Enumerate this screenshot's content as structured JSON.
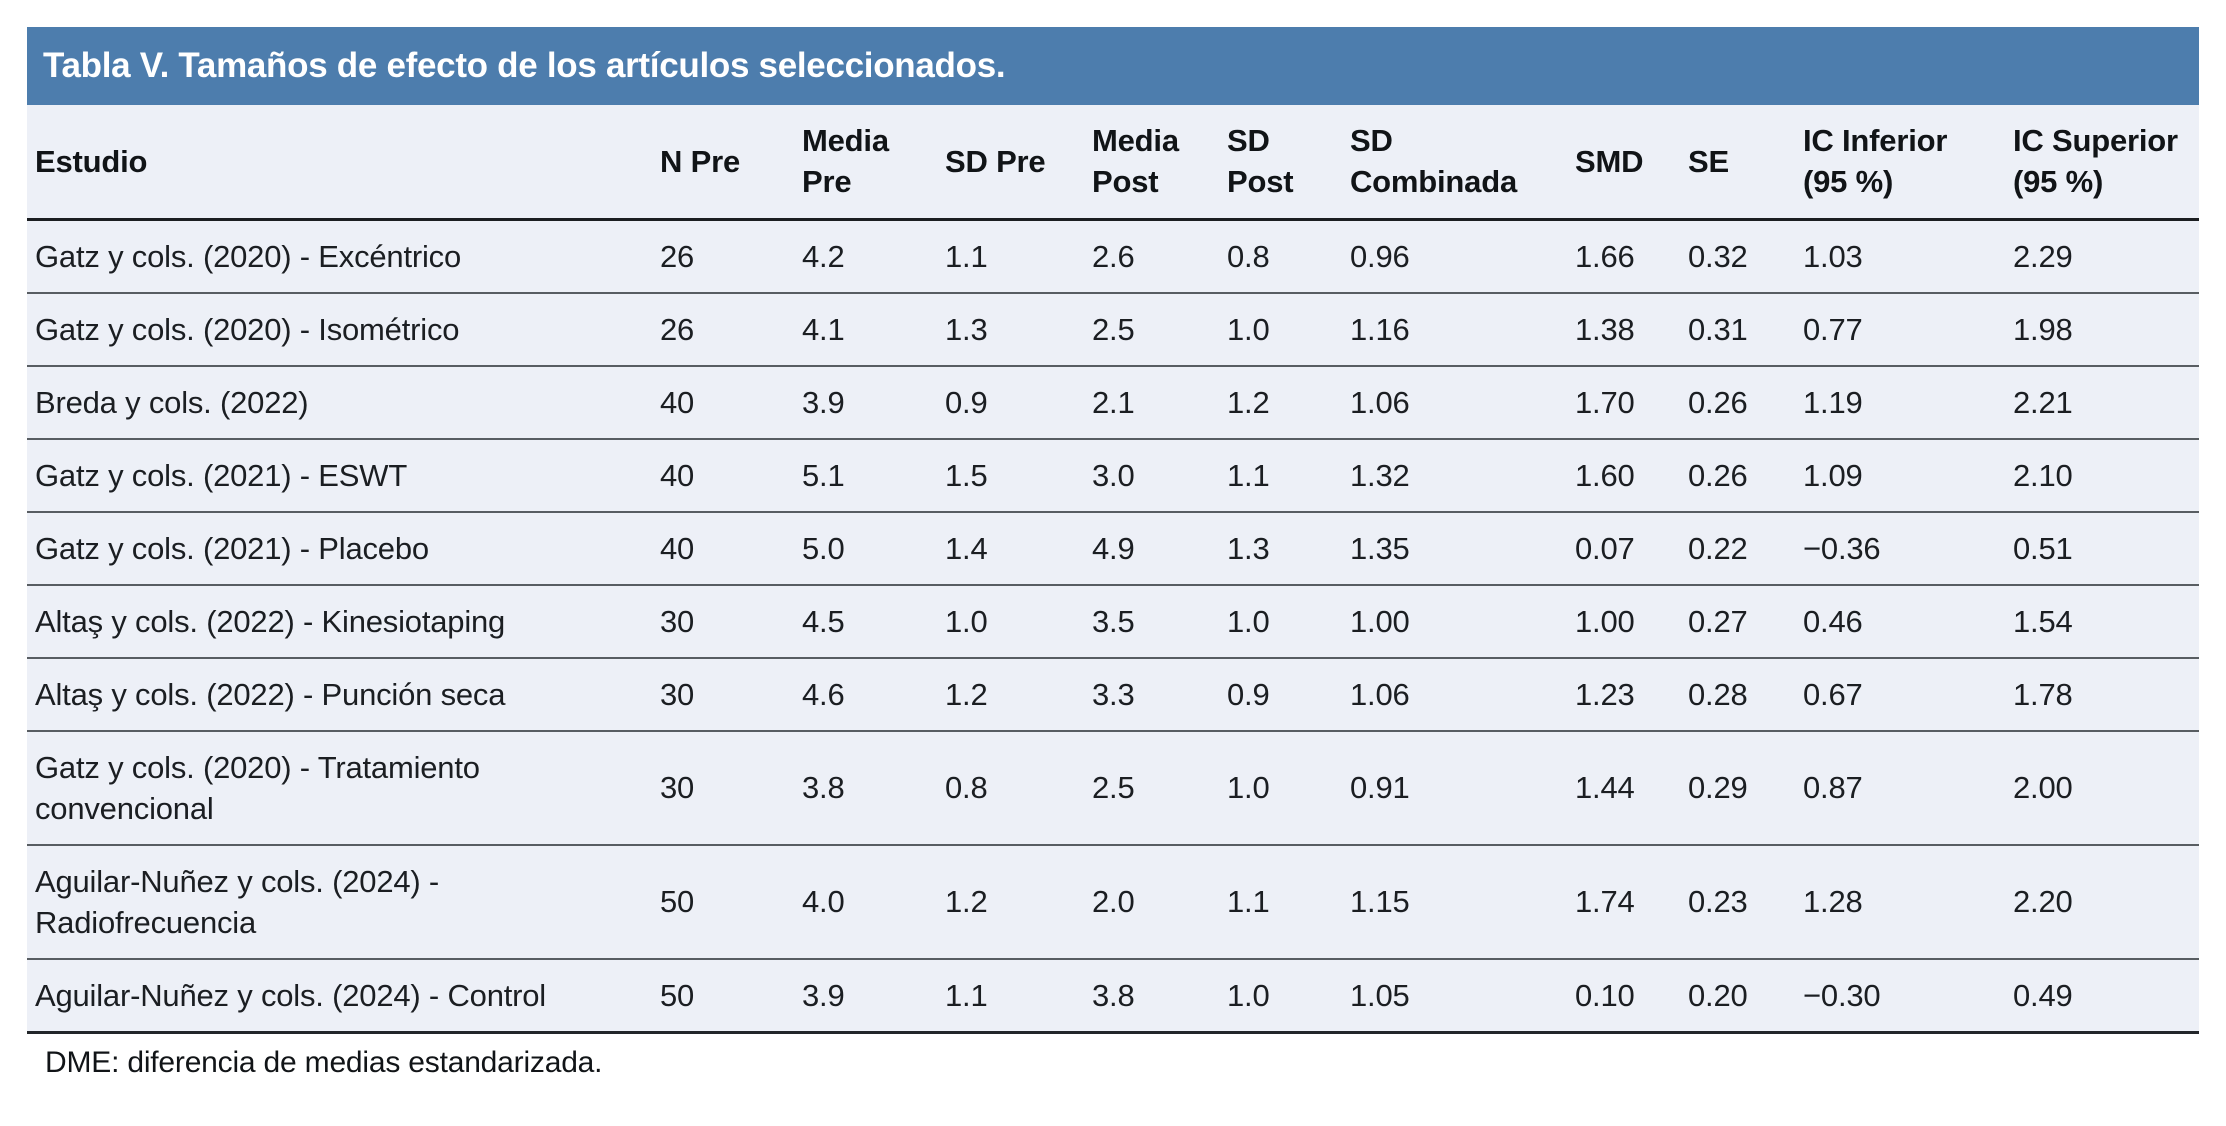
{
  "table": {
    "title": "Tabla V. Tamaños de efecto de los artículos seleccionados.",
    "columns": [
      {
        "key": "estudio",
        "label": "Estudio"
      },
      {
        "key": "n-pre",
        "label": "N Pre"
      },
      {
        "key": "media-pre",
        "label": "Media\nPre"
      },
      {
        "key": "sd-pre",
        "label": "SD Pre"
      },
      {
        "key": "media-post",
        "label": "Media\nPost"
      },
      {
        "key": "sd-post",
        "label": "SD\nPost"
      },
      {
        "key": "sd-combinada",
        "label": "SD\nCombinada"
      },
      {
        "key": "smd",
        "label": "SMD"
      },
      {
        "key": "se",
        "label": "SE"
      },
      {
        "key": "ic-inferior",
        "label": "IC Inferior\n(95 %)"
      },
      {
        "key": "ic-superior",
        "label": "IC Superior\n(95 %)"
      }
    ],
    "rows": [
      [
        "Gatz y cols. (2020) - Excéntrico",
        "26",
        "4.2",
        "1.1",
        "2.6",
        "0.8",
        "0.96",
        "1.66",
        "0.32",
        "1.03",
        "2.29"
      ],
      [
        "Gatz y cols. (2020) - Isométrico",
        "26",
        "4.1",
        "1.3",
        "2.5",
        "1.0",
        "1.16",
        "1.38",
        "0.31",
        "0.77",
        "1.98"
      ],
      [
        "Breda y cols. (2022)",
        "40",
        "3.9",
        "0.9",
        "2.1",
        "1.2",
        "1.06",
        "1.70",
        "0.26",
        "1.19",
        "2.21"
      ],
      [
        "Gatz y cols. (2021) - ESWT",
        "40",
        "5.1",
        "1.5",
        "3.0",
        "1.1",
        "1.32",
        "1.60",
        "0.26",
        "1.09",
        "2.10"
      ],
      [
        "Gatz y cols. (2021) - Placebo",
        "40",
        "5.0",
        "1.4",
        "4.9",
        "1.3",
        "1.35",
        "0.07",
        "0.22",
        "−0.36",
        "0.51"
      ],
      [
        "Altaş y cols. (2022) - Kinesiotaping",
        "30",
        "4.5",
        "1.0",
        "3.5",
        "1.0",
        "1.00",
        "1.00",
        "0.27",
        "0.46",
        "1.54"
      ],
      [
        "Altaş y cols. (2022) - Punción seca",
        "30",
        "4.6",
        "1.2",
        "3.3",
        "0.9",
        "1.06",
        "1.23",
        "0.28",
        "0.67",
        "1.78"
      ],
      [
        "Gatz y cols. (2020) - Tratamiento convencional",
        "30",
        "3.8",
        "0.8",
        "2.5",
        "1.0",
        "0.91",
        "1.44",
        "0.29",
        "0.87",
        "2.00"
      ],
      [
        "Aguilar-Nuñez y cols. (2024) - Radiofrecuencia",
        "50",
        "4.0",
        "1.2",
        "2.0",
        "1.1",
        "1.15",
        "1.74",
        "0.23",
        "1.28",
        "2.20"
      ],
      [
        "Aguilar-Nuñez y cols. (2024) - Control",
        "50",
        "3.9",
        "1.1",
        "3.8",
        "1.0",
        "1.05",
        "0.10",
        "0.20",
        "−0.30",
        "0.49"
      ]
    ],
    "footnote": "DME: diferencia de medias estandarizada.",
    "colors": {
      "title_bar": "#4d7dad",
      "row_bg": "#edf0f7",
      "header_border": "#1b1e21",
      "row_border": "#585d62"
    }
  }
}
